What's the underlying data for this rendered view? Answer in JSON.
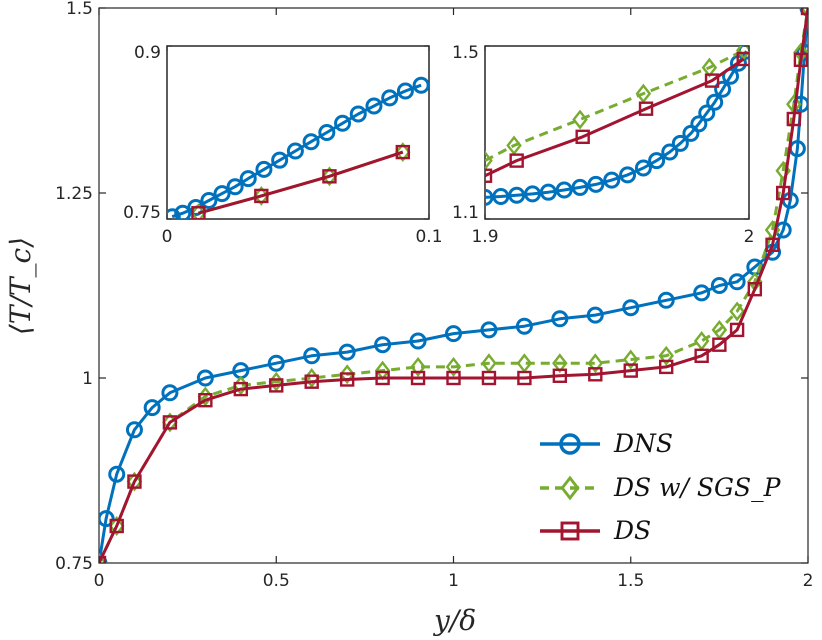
{
  "chart_data": [
    {
      "type": "line",
      "xlabel": "y/δ",
      "ylabel": "⟨T/T_c⟩",
      "xlim": [
        0,
        2
      ],
      "ylim": [
        0.75,
        1.5
      ],
      "xticks": [
        "0",
        "0.5",
        "1",
        "1.5",
        "2"
      ],
      "yticks": [
        "0.75",
        "1",
        "1.25",
        "1.5"
      ],
      "grid": false,
      "legend": "bottom-right",
      "series": [
        {
          "name": "DNS",
          "color": "#0072BD",
          "marker": "circle",
          "line": "solid",
          "x": [
            0,
            0.02,
            0.05,
            0.1,
            0.15,
            0.2,
            0.3,
            0.4,
            0.5,
            0.6,
            0.7,
            0.8,
            0.9,
            1.0,
            1.1,
            1.2,
            1.3,
            1.4,
            1.5,
            1.6,
            1.7,
            1.75,
            1.8,
            1.85,
            1.9,
            1.93,
            1.95,
            1.97,
            1.98,
            1.99,
            2.0
          ],
          "y": [
            0.75,
            0.81,
            0.87,
            0.93,
            0.96,
            0.98,
            1.0,
            1.01,
            1.02,
            1.03,
            1.035,
            1.045,
            1.05,
            1.06,
            1.065,
            1.07,
            1.08,
            1.085,
            1.095,
            1.105,
            1.115,
            1.125,
            1.13,
            1.15,
            1.17,
            1.2,
            1.24,
            1.31,
            1.37,
            1.44,
            1.5
          ]
        },
        {
          "name": "DS w/ SGS_P",
          "color": "#77AC30",
          "marker": "diamond",
          "line": "dashed",
          "x": [
            0,
            0.05,
            0.1,
            0.2,
            0.3,
            0.4,
            0.5,
            0.6,
            0.7,
            0.8,
            0.9,
            1.0,
            1.1,
            1.2,
            1.3,
            1.4,
            1.5,
            1.6,
            1.7,
            1.75,
            1.8,
            1.85,
            1.9,
            1.93,
            1.96,
            1.98,
            2.0
          ],
          "y": [
            0.75,
            0.8,
            0.86,
            0.94,
            0.975,
            0.99,
            0.995,
            1.0,
            1.005,
            1.01,
            1.015,
            1.015,
            1.02,
            1.02,
            1.02,
            1.02,
            1.025,
            1.03,
            1.05,
            1.065,
            1.09,
            1.13,
            1.2,
            1.28,
            1.37,
            1.44,
            1.5
          ]
        },
        {
          "name": "DS",
          "color": "#A2142F",
          "marker": "square",
          "line": "solid",
          "x": [
            0,
            0.05,
            0.1,
            0.2,
            0.3,
            0.4,
            0.5,
            0.6,
            0.7,
            0.8,
            0.9,
            1.0,
            1.1,
            1.2,
            1.3,
            1.4,
            1.5,
            1.6,
            1.7,
            1.75,
            1.8,
            1.85,
            1.9,
            1.93,
            1.96,
            1.98,
            2.0
          ],
          "y": [
            0.75,
            0.8,
            0.86,
            0.94,
            0.97,
            0.985,
            0.99,
            0.995,
            0.998,
            1.0,
            1.0,
            1.0,
            1.0,
            1.0,
            1.003,
            1.005,
            1.01,
            1.015,
            1.03,
            1.045,
            1.065,
            1.12,
            1.18,
            1.25,
            1.35,
            1.43,
            1.5
          ]
        }
      ]
    },
    {
      "type": "line",
      "xlim": [
        0,
        0.1
      ],
      "ylim": [
        0.75,
        0.9
      ],
      "xticks": [
        "0",
        "0.1"
      ],
      "yticks": [
        "0.75",
        "0.9"
      ],
      "series": [
        {
          "name": "DNS",
          "color": "#0072BD",
          "marker": "circle",
          "line": "solid",
          "x": [
            0.002,
            0.006,
            0.011,
            0.016,
            0.021,
            0.026,
            0.031,
            0.037,
            0.043,
            0.049,
            0.055,
            0.061,
            0.067,
            0.073,
            0.079,
            0.085,
            0.091,
            0.097
          ],
          "y": [
            0.752,
            0.755,
            0.76,
            0.766,
            0.772,
            0.778,
            0.785,
            0.793,
            0.801,
            0.809,
            0.817,
            0.825,
            0.833,
            0.841,
            0.848,
            0.855,
            0.861,
            0.866
          ]
        },
        {
          "name": "DS w/ SGS_P",
          "color": "#77AC30",
          "marker": "diamond",
          "line": "solid",
          "x": [
            0.012,
            0.036,
            0.062,
            0.09
          ],
          "y": [
            0.755,
            0.77,
            0.787,
            0.808
          ]
        },
        {
          "name": "DS",
          "color": "#A2142F",
          "marker": "square",
          "line": "solid",
          "x": [
            0.012,
            0.036,
            0.062,
            0.09
          ],
          "y": [
            0.755,
            0.77,
            0.787,
            0.808
          ]
        }
      ]
    },
    {
      "type": "line",
      "xlim": [
        1.9,
        2.0
      ],
      "ylim": [
        1.1,
        1.5
      ],
      "xticks": [
        "1.9",
        "2"
      ],
      "yticks": [
        "1.1",
        "1.5"
      ],
      "series": [
        {
          "name": "DNS",
          "color": "#0072BD",
          "marker": "circle",
          "line": "solid",
          "x": [
            1.9,
            1.906,
            1.912,
            1.918,
            1.924,
            1.93,
            1.936,
            1.942,
            1.948,
            1.954,
            1.96,
            1.965,
            1.97,
            1.974,
            1.978,
            1.981,
            1.984,
            1.987,
            1.99,
            1.993,
            1.996,
            1.999
          ],
          "y": [
            1.15,
            1.152,
            1.155,
            1.158,
            1.162,
            1.167,
            1.173,
            1.18,
            1.19,
            1.202,
            1.218,
            1.235,
            1.255,
            1.275,
            1.298,
            1.32,
            1.345,
            1.37,
            1.4,
            1.43,
            1.46,
            1.488
          ]
        },
        {
          "name": "DS w/ SGS_P",
          "color": "#77AC30",
          "marker": "diamond",
          "line": "dashed",
          "x": [
            1.9,
            1.911,
            1.936,
            1.96,
            1.985,
            1.998
          ],
          "y": [
            1.235,
            1.27,
            1.33,
            1.39,
            1.45,
            1.49
          ]
        },
        {
          "name": "DS",
          "color": "#A2142F",
          "marker": "square",
          "line": "solid",
          "x": [
            1.9,
            1.912,
            1.937,
            1.961,
            1.986,
            1.998
          ],
          "y": [
            1.2,
            1.235,
            1.29,
            1.355,
            1.42,
            1.47
          ]
        }
      ]
    }
  ]
}
